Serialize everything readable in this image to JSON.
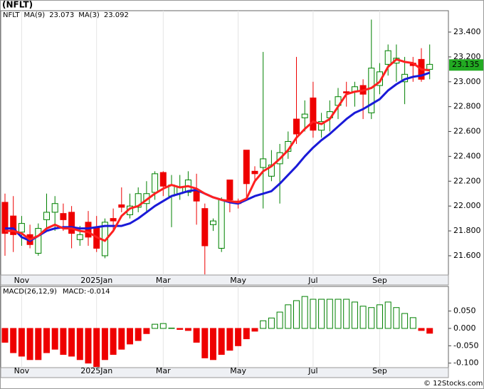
{
  "title": "(NFLT)",
  "footer": "© 12Stocks.com",
  "chart_data": [
    {
      "type": "candlestick",
      "symbol": "NFLT",
      "categories": [
        null,
        null,
        "Nov",
        null,
        null,
        null,
        null,
        null,
        null,
        null,
        null,
        "2025Jan",
        null,
        null,
        null,
        null,
        null,
        null,
        null,
        "Mar",
        null,
        null,
        null,
        null,
        null,
        null,
        null,
        null,
        "May",
        null,
        null,
        null,
        null,
        null,
        null,
        null,
        null,
        "Jul",
        null,
        null,
        null,
        null,
        null,
        null,
        null,
        "Sep",
        null,
        null,
        null,
        null,
        null,
        null
      ],
      "open": [
        22.03,
        21.92,
        21.79,
        21.77,
        21.62,
        21.89,
        21.95,
        21.94,
        21.95,
        21.73,
        21.87,
        21.83,
        21.6,
        21.9,
        22.01,
        21.93,
        21.99,
        22.02,
        22.11,
        22.27,
        22.08,
        22.1,
        22.11,
        22.12,
        21.98,
        21.85,
        21.66,
        22.21,
        22.04,
        22.45,
        22.28,
        22.31,
        22.24,
        22.34,
        22.44,
        22.7,
        22.71,
        22.87,
        22.61,
        22.71,
        22.81,
        22.92,
        22.92,
        22.97,
        22.75,
        22.97,
        23.14,
        23.15,
        23.0,
        23.15,
        23.18,
        23.1
      ],
      "high": [
        22.1,
        22.08,
        21.92,
        21.85,
        21.86,
        22.1,
        22.08,
        22.02,
        22.0,
        21.84,
        21.96,
        21.92,
        21.9,
        21.98,
        22.15,
        22.1,
        22.15,
        22.2,
        22.28,
        22.28,
        22.25,
        22.25,
        22.28,
        22.26,
        22.02,
        21.9,
        22.07,
        22.21,
        22.06,
        22.45,
        22.32,
        23.24,
        22.45,
        22.5,
        22.6,
        23.2,
        22.85,
        23.0,
        22.75,
        22.85,
        22.95,
        23.0,
        23.0,
        23.02,
        23.5,
        23.15,
        23.3,
        23.3,
        23.2,
        23.2,
        23.27,
        23.3
      ],
      "low": [
        21.6,
        21.63,
        21.68,
        21.66,
        21.6,
        21.82,
        21.8,
        21.8,
        21.66,
        21.68,
        21.68,
        21.63,
        21.58,
        21.8,
        21.95,
        21.9,
        21.95,
        21.95,
        22.05,
        22.08,
        21.83,
        22.05,
        22.08,
        21.85,
        21.45,
        21.8,
        21.63,
        21.95,
        21.98,
        22.06,
        22.2,
        21.98,
        22.2,
        22.02,
        22.38,
        22.5,
        22.6,
        22.55,
        22.55,
        22.6,
        22.7,
        22.8,
        22.8,
        22.7,
        22.7,
        22.9,
        23.05,
        23.0,
        22.82,
        23.0,
        23.0,
        23.02
      ],
      "close": [
        21.78,
        21.77,
        21.86,
        21.69,
        21.82,
        21.95,
        22.02,
        21.89,
        21.78,
        21.77,
        21.75,
        21.66,
        21.87,
        21.88,
        21.99,
        22.0,
        22.1,
        22.1,
        22.26,
        22.16,
        22.17,
        22.15,
        22.21,
        22.04,
        21.68,
        21.88,
        22.05,
        22.05,
        22.02,
        22.18,
        22.26,
        22.38,
        22.33,
        22.43,
        22.52,
        22.58,
        22.74,
        22.61,
        22.68,
        22.76,
        22.88,
        22.91,
        22.96,
        22.9,
        23.11,
        23.08,
        23.25,
        23.19,
        23.06,
        23.13,
        23.02,
        23.14
      ],
      "up_color": "#008000",
      "down_color": "#ee0000",
      "series": [
        {
          "name": "MA(9)",
          "last": 23.073,
          "color": "#1a1ad8",
          "values": [
            21.82,
            21.82,
            21.75,
            21.72,
            21.76,
            21.8,
            21.82,
            21.83,
            21.83,
            21.82,
            21.82,
            21.83,
            21.84,
            21.84,
            21.84,
            21.86,
            21.9,
            21.95,
            22.0,
            22.04,
            22.08,
            22.1,
            22.12,
            22.13,
            22.1,
            22.07,
            22.05,
            22.03,
            22.02,
            22.05,
            22.08,
            22.1,
            22.12,
            22.18,
            22.25,
            22.32,
            22.4,
            22.47,
            22.53,
            22.58,
            22.64,
            22.7,
            22.75,
            22.78,
            22.82,
            22.86,
            22.93,
            22.98,
            23.02,
            23.04,
            23.05,
            23.073
          ]
        },
        {
          "name": "MA(3)",
          "last": 23.092,
          "color": "#ff2020",
          "values": [
            21.8,
            21.8,
            21.78,
            21.73,
            21.76,
            21.82,
            21.85,
            21.82,
            21.82,
            21.8,
            21.79,
            21.75,
            21.72,
            21.8,
            21.92,
            21.98,
            22.0,
            22.05,
            22.1,
            22.14,
            22.17,
            22.15,
            22.16,
            22.14,
            22.1,
            22.07,
            22.05,
            22.04,
            22.03,
            22.06,
            22.2,
            22.28,
            22.32,
            22.38,
            22.45,
            22.55,
            22.62,
            22.68,
            22.66,
            22.7,
            22.8,
            22.9,
            22.92,
            22.93,
            22.95,
            23.0,
            23.12,
            23.18,
            23.16,
            23.15,
            23.1,
            23.092
          ]
        }
      ],
      "last_price": 23.135,
      "ylim": [
        21.445,
        23.572
      ],
      "yticks": [
        {
          "value": 21.6,
          "label": "21.600"
        },
        {
          "value": 21.8,
          "label": "21.800"
        },
        {
          "value": 22.0,
          "label": "22.000"
        },
        {
          "value": 22.2,
          "label": "22.200"
        },
        {
          "value": 22.4,
          "label": "22.400"
        },
        {
          "value": 22.6,
          "label": "22.600"
        },
        {
          "value": 22.8,
          "label": "22.800"
        },
        {
          "value": 23.0,
          "label": "23.000"
        },
        {
          "value": 23.2,
          "label": "23.200"
        },
        {
          "value": 23.4,
          "label": "23.400"
        }
      ]
    },
    {
      "type": "bar",
      "name": "MACD(26,12,9)",
      "last_label": "MACD:",
      "last": -0.014,
      "categories": [
        null,
        null,
        "Nov",
        null,
        null,
        null,
        null,
        null,
        null,
        null,
        null,
        "2025Jan",
        null,
        null,
        null,
        null,
        null,
        null,
        null,
        "Mar",
        null,
        null,
        null,
        null,
        null,
        null,
        null,
        null,
        "May",
        null,
        null,
        null,
        null,
        null,
        null,
        null,
        null,
        "Jul",
        null,
        null,
        null,
        null,
        null,
        null,
        null,
        "Sep",
        null,
        null,
        null,
        null,
        null,
        null
      ],
      "values": [
        -0.04,
        -0.07,
        -0.08,
        -0.09,
        -0.09,
        -0.07,
        -0.06,
        -0.075,
        -0.08,
        -0.09,
        -0.1,
        -0.11,
        -0.09,
        -0.075,
        -0.06,
        -0.045,
        -0.035,
        -0.015,
        0.012,
        0.014,
        0.001,
        -0.003,
        -0.006,
        -0.04,
        -0.085,
        -0.09,
        -0.075,
        -0.063,
        -0.05,
        -0.03,
        -0.008,
        0.022,
        0.03,
        0.047,
        0.068,
        0.08,
        0.092,
        0.084,
        0.084,
        0.084,
        0.084,
        0.084,
        0.076,
        0.064,
        0.06,
        0.068,
        0.076,
        0.06,
        0.043,
        0.031,
        -0.006,
        -0.014
      ],
      "up_color": "#008000",
      "down_color": "#ee0000",
      "ylim": [
        -0.113,
        0.121
      ],
      "yticks": [
        {
          "value": -0.1,
          "label": "-0.100"
        },
        {
          "value": -0.05,
          "label": "-0.050"
        },
        {
          "value": 0,
          "label": "0.000"
        },
        {
          "value": 0.05,
          "label": "0.050"
        }
      ]
    }
  ]
}
